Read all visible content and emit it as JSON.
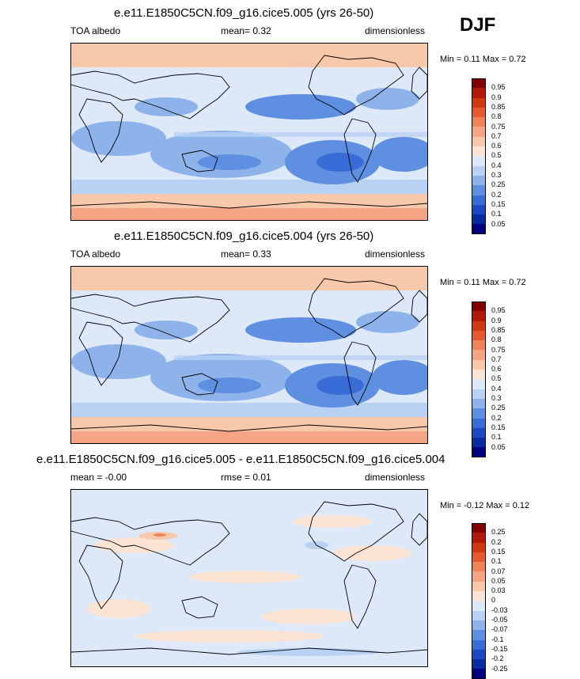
{
  "season": "DJF",
  "panels": [
    {
      "title": "e.e11.E1850C5CN.f09_g16.cice5.005 (yrs 26-50)",
      "left_label": "TOA albedo",
      "stat_label": "mean=  0.32",
      "units": "dimensionless",
      "range_label": "Min =  0.11 Max =  0.72",
      "kind": "field"
    },
    {
      "title": "e.e11.E1850C5CN.f09_g16.cice5.004 (yrs 26-50)",
      "left_label": "TOA albedo",
      "stat_label": "mean=  0.33",
      "units": "dimensionless",
      "range_label": "Min =  0.11 Max =  0.72",
      "kind": "field"
    },
    {
      "title": "e.e11.E1850C5CN.f09_g16.cice5.005 - e.e11.E1850C5CN.f09_g16.cice5.004",
      "left_label": "mean = -0.00",
      "stat_label": "rmse =  0.01",
      "units": "dimensionless",
      "range_label": "Min = -0.12 Max =  0.12",
      "kind": "diff"
    }
  ],
  "colorbars": {
    "field": {
      "labels": [
        "0.95",
        "0.9",
        "0.85",
        "0.8",
        "0.75",
        "0.7",
        "0.6",
        "0.5",
        "0.4",
        "0.3",
        "0.25",
        "0.2",
        "0.15",
        "0.1",
        "0.05"
      ],
      "colors": [
        "#800000",
        "#b01a0a",
        "#d0380e",
        "#e55a2a",
        "#f0825a",
        "#f5a585",
        "#f8c8aa",
        "#fce4d4",
        "#dde9f8",
        "#b9d1f2",
        "#8eb3ea",
        "#5f8fe0",
        "#3a6cd8",
        "#1c48c4",
        "#0a2aa2",
        "#00007e"
      ]
    },
    "diff": {
      "labels": [
        "0.25",
        "0.2",
        "0.15",
        "0.1",
        "0.07",
        "0.05",
        "0.03",
        "0",
        "-0.03",
        "-0.05",
        "-0.07",
        "-0.1",
        "-0.15",
        "-0.2",
        "-0.25"
      ],
      "colors": [
        "#800000",
        "#b01a0a",
        "#d0380e",
        "#e55a2a",
        "#f0825a",
        "#f5a585",
        "#f8c8aa",
        "#fce4d4",
        "#dde9f8",
        "#b9d1f2",
        "#8eb3ea",
        "#5f8fe0",
        "#3a6cd8",
        "#1c48c4",
        "#0a2aa2",
        "#00007e"
      ]
    }
  }
}
